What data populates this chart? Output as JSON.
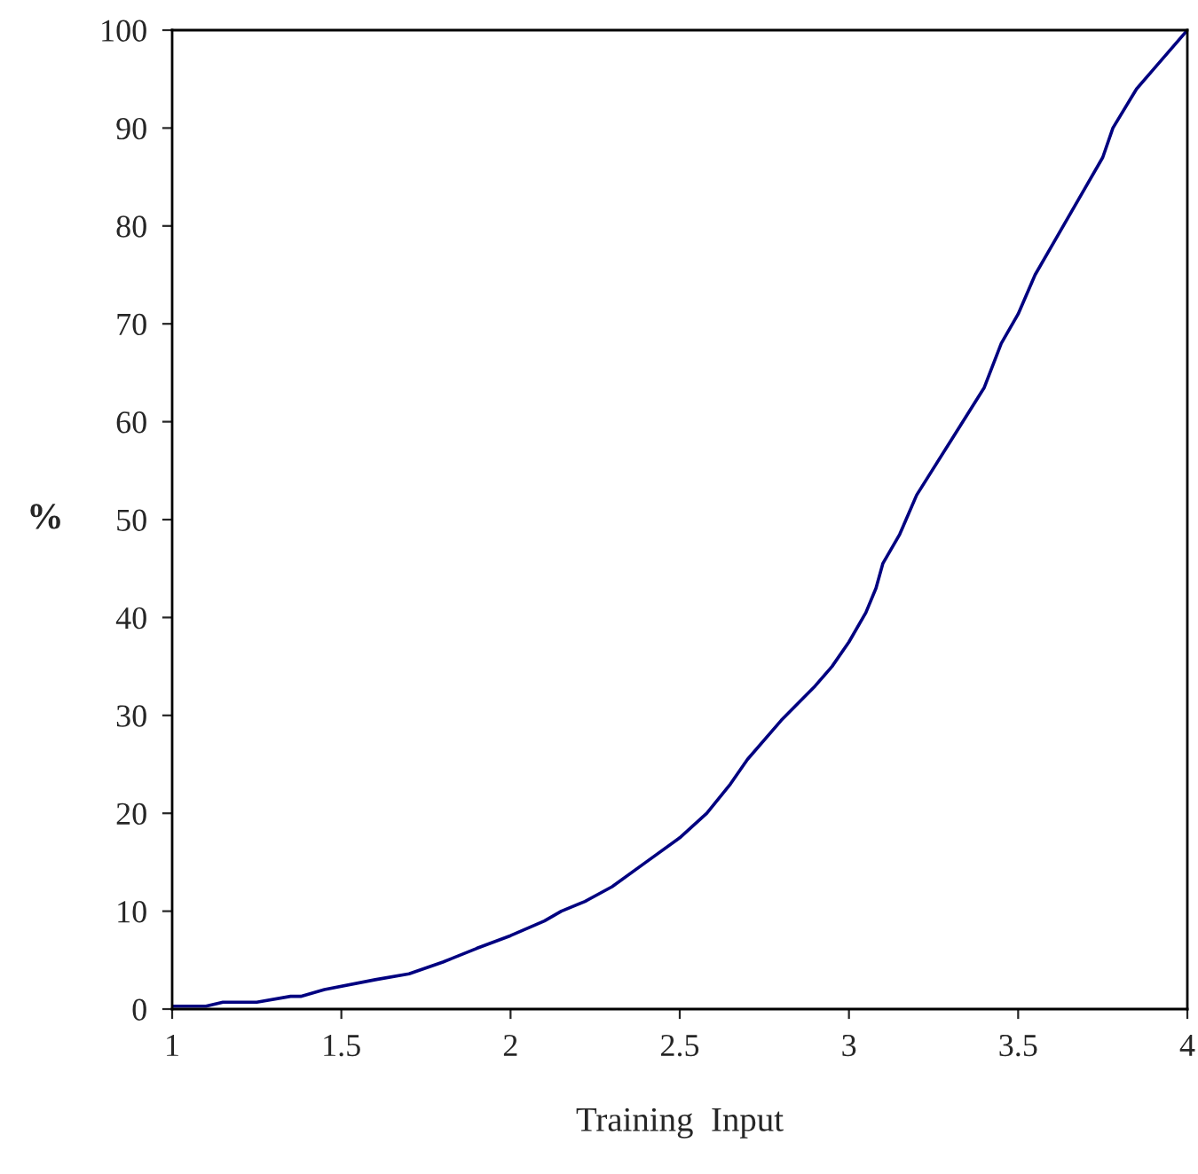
{
  "chart_data": {
    "type": "line",
    "xlabel": "Training  Input",
    "ylabel": "%",
    "series": [
      {
        "color": "#000080",
        "x": [
          1.0,
          1.1,
          1.15,
          1.25,
          1.35,
          1.38,
          1.45,
          1.6,
          1.7,
          1.8,
          1.9,
          2.0,
          2.1,
          2.15,
          2.22,
          2.3,
          2.4,
          2.5,
          2.58,
          2.65,
          2.7,
          2.8,
          2.9,
          2.95,
          3.0,
          3.05,
          3.08,
          3.1,
          3.15,
          3.2,
          3.3,
          3.4,
          3.45,
          3.5,
          3.55,
          3.6,
          3.7,
          3.75,
          3.78,
          3.85,
          3.9,
          4.0
        ],
        "values": [
          0.3,
          0.3,
          0.7,
          0.7,
          1.3,
          1.3,
          2.0,
          3.0,
          3.6,
          4.8,
          6.2,
          7.5,
          9.0,
          10.0,
          11.0,
          12.5,
          15.0,
          17.5,
          20,
          23,
          25.5,
          29.5,
          33,
          35,
          37.5,
          40.5,
          43,
          45.5,
          48.5,
          52.5,
          58,
          63.5,
          68,
          71,
          75,
          78,
          84,
          87,
          90,
          94,
          96,
          100
        ]
      }
    ],
    "xlim": [
      1,
      4
    ],
    "xticks": [
      1,
      1.5,
      2,
      2.5,
      3,
      3.5,
      4
    ],
    "ylim": [
      0,
      100
    ],
    "yticks": [
      0,
      10,
      20,
      30,
      40,
      50,
      60,
      70,
      80,
      90,
      100
    ],
    "grid": false,
    "legend": false,
    "marker": "none",
    "line_style": "solid"
  }
}
